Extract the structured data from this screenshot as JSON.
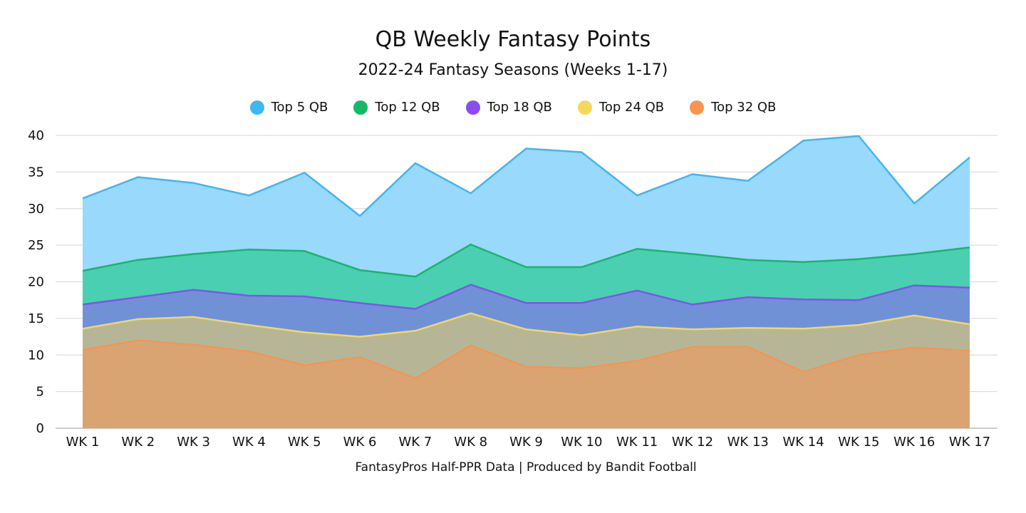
{
  "chart_data": {
    "type": "area",
    "title": "QB Weekly Fantasy Points",
    "subtitle": "2022-24 Fantasy Seasons (Weeks 1-17)",
    "footer": "FantasyPros Half-PPR Data | Produced by Bandit Football",
    "xlabel": "",
    "ylabel": "",
    "ylim": [
      0,
      40
    ],
    "yticks": [
      0,
      5,
      10,
      15,
      20,
      25,
      30,
      35,
      40
    ],
    "grid": true,
    "legend_position": "top",
    "categories": [
      "WK 1",
      "WK 2",
      "WK 3",
      "WK 4",
      "WK 5",
      "WK 6",
      "WK 7",
      "WK 8",
      "WK 9",
      "WK 10",
      "WK 11",
      "WK 12",
      "WK 13",
      "WK 14",
      "WK 15",
      "WK 16",
      "WK 17"
    ],
    "series": [
      {
        "name": "Top 5 QB",
        "color": "#3db7f5",
        "fill": "#99d9fb",
        "values": [
          31.4,
          34.3,
          33.5,
          31.8,
          34.9,
          29.0,
          36.2,
          32.1,
          38.2,
          37.7,
          31.8,
          34.7,
          33.8,
          39.3,
          39.9,
          30.7,
          37.0
        ]
      },
      {
        "name": "Top 12 QB",
        "color": "#16b866",
        "fill": "#4acfb2",
        "values": [
          21.5,
          23.0,
          23.8,
          24.4,
          24.2,
          21.6,
          20.7,
          25.1,
          22.0,
          22.0,
          24.5,
          23.8,
          23.0,
          22.7,
          23.1,
          23.8,
          24.7
        ]
      },
      {
        "name": "Top 18 QB",
        "color": "#8b4cf4",
        "fill": "#7091d6",
        "values": [
          16.9,
          17.9,
          18.9,
          18.1,
          18.0,
          17.1,
          16.3,
          19.6,
          17.1,
          17.1,
          18.8,
          16.9,
          17.9,
          17.6,
          17.5,
          19.5,
          19.2
        ]
      },
      {
        "name": "Top 24 QB",
        "color": "#f6d75a",
        "fill": "#b6b696",
        "values": [
          13.6,
          14.9,
          15.2,
          14.1,
          13.1,
          12.5,
          13.3,
          15.7,
          13.5,
          12.7,
          13.9,
          13.5,
          13.7,
          13.6,
          14.1,
          15.4,
          14.2
        ]
      },
      {
        "name": "Top 32 QB",
        "color": "#f79450",
        "fill": "#d9a472",
        "values": [
          10.7,
          12.0,
          11.4,
          10.5,
          8.6,
          9.7,
          6.8,
          11.3,
          8.4,
          8.2,
          9.2,
          11.1,
          11.1,
          7.7,
          10.0,
          11.0,
          10.6
        ]
      }
    ]
  }
}
